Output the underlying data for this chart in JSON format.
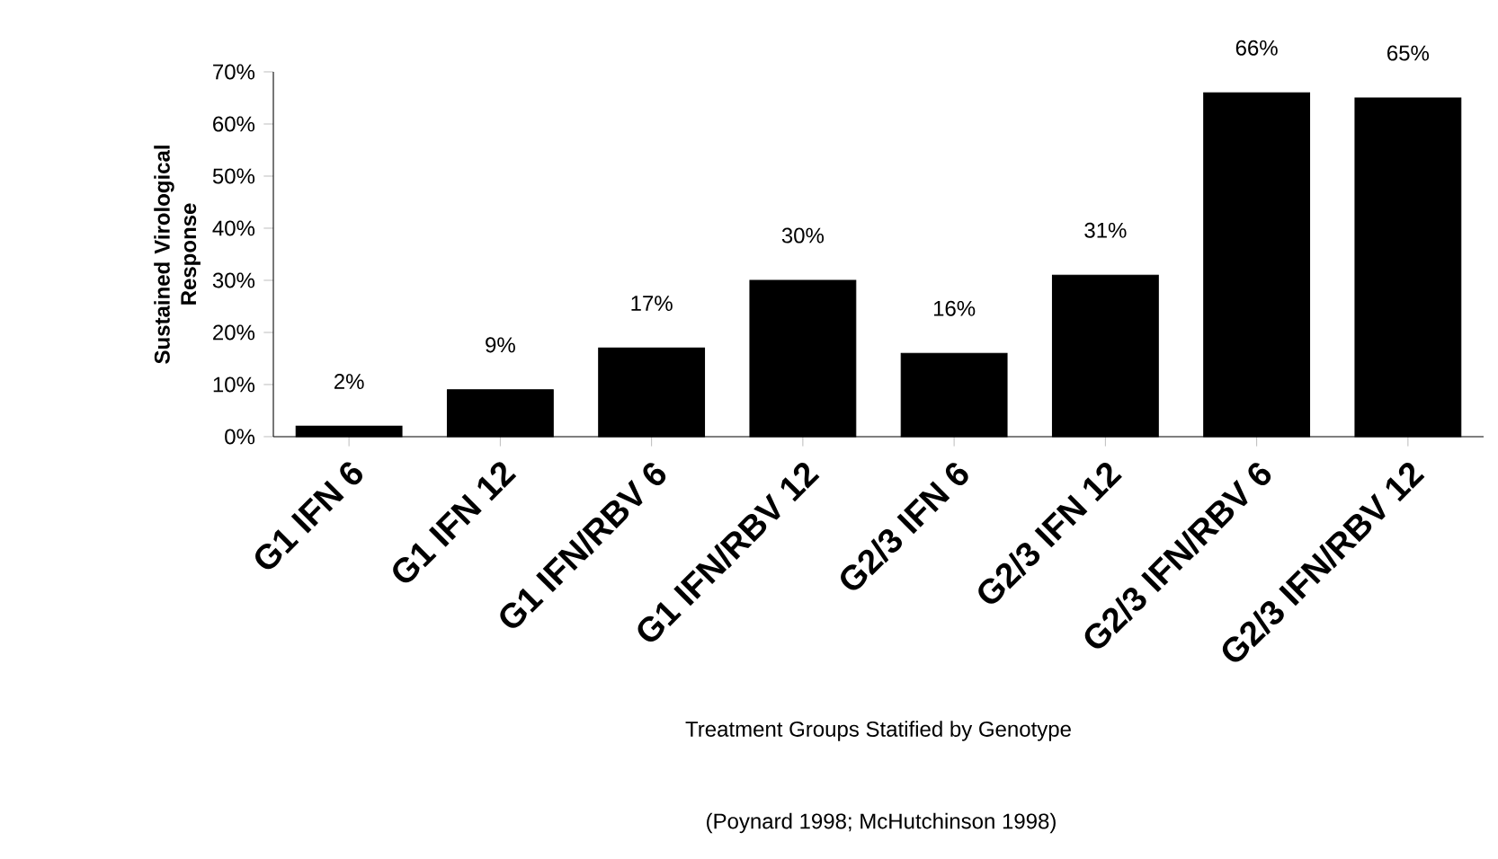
{
  "chart_data": {
    "type": "bar",
    "ylabel": "Sustained Virological Response",
    "xlabel": "Treatment Groups Statified by Genotype",
    "annotations": [
      "(Poynard 1998; McHutchinson 1998)"
    ],
    "categories": [
      "G1 IFN 6",
      "G1 IFN 12",
      "G1 IFN/RBV 6",
      "G1 IFN/RBV 12",
      "G2/3 IFN 6",
      "G2/3 IFN 12",
      "G2/3 IFN/RBV 6",
      "G2/3 IFN/RBV 12"
    ],
    "values": [
      2,
      9,
      17,
      30,
      16,
      31,
      66,
      65
    ],
    "value_labels": [
      "2%",
      "9%",
      "17%",
      "30%",
      "16%",
      "31%",
      "66%",
      "65%"
    ],
    "color": "#000000",
    "ylim": [
      0,
      70
    ],
    "yticks": [
      {
        "value": 0,
        "label": "0%"
      },
      {
        "value": 10,
        "label": "10%"
      },
      {
        "value": 20,
        "label": "20%"
      },
      {
        "value": 30,
        "label": "30%"
      },
      {
        "value": 40,
        "label": "40%"
      },
      {
        "value": 50,
        "label": "50%"
      },
      {
        "value": 60,
        "label": "60%"
      },
      {
        "value": 70,
        "label": "70%"
      }
    ]
  }
}
